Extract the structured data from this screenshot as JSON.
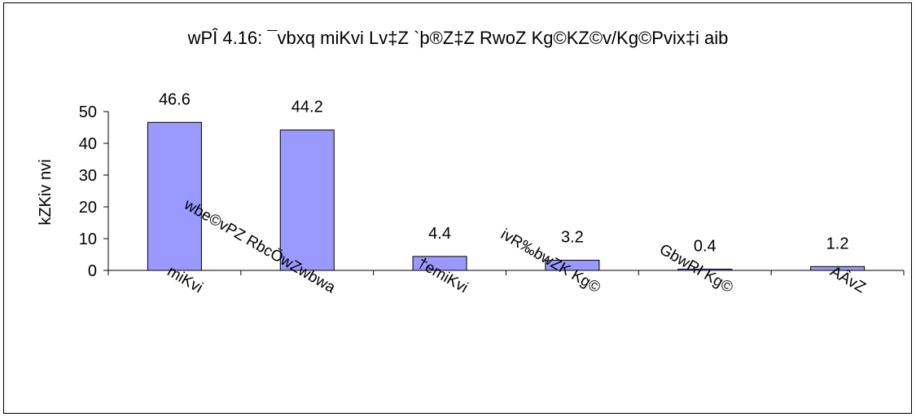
{
  "chart_data": {
    "type": "bar",
    "title": "wPÎ 4.16: ¯vbxq miKvi Lv‡Z `þ®Z‡Z RwoZ Kg©KZ©v/Kg©Pvix‡i aib",
    "xlabel": "",
    "ylabel": "kZKiv nvi",
    "categories": [
      "miKvi",
      "wbe©vPZ RbcÖwZwbwa",
      "†emiKvi",
      "ivR‰bwZK Kg©",
      "GbwRI Kg©",
      "AÂvZ"
    ],
    "values": [
      46.6,
      44.2,
      4.4,
      3.2,
      0.4,
      1.2
    ],
    "data_labels": [
      "46.6",
      "44.2",
      "4.4",
      "3.2",
      "0.4",
      "1.2"
    ],
    "ylim": [
      0,
      50
    ],
    "yticks": [
      "0",
      "10",
      "20",
      "30",
      "40",
      "50"
    ],
    "legend": "none",
    "grid": false,
    "bar_color": "#9999ff",
    "bar_border_color": "#000000"
  }
}
